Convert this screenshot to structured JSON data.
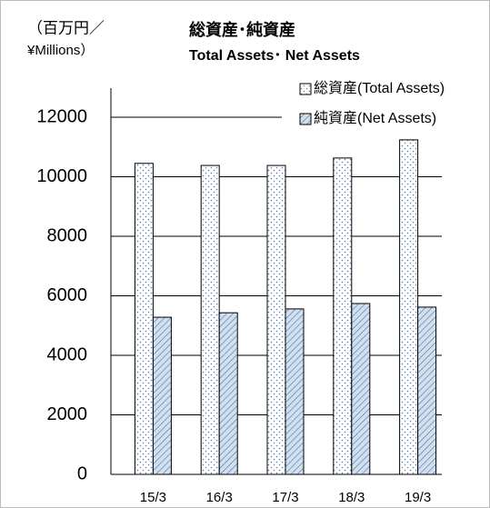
{
  "chart_data": {
    "type": "bar",
    "title": "総資産･純資産",
    "subtitle": "Total Assets･ Net Assets",
    "y_label": [
      "（百万円／",
      "¥Millions）"
    ],
    "categories": [
      "15/3",
      "16/3",
      "17/3",
      "18/3",
      "19/3"
    ],
    "series": [
      {
        "name": "総資産(Total Assets)",
        "color": "#ffffff",
        "pattern": "dots",
        "values": [
          10450,
          10380,
          10380,
          10630,
          11240
        ]
      },
      {
        "name": "純資産(Net Assets)",
        "color": "#cfe0f2",
        "pattern": "hatch",
        "values": [
          5280,
          5430,
          5560,
          5740,
          5620
        ]
      }
    ],
    "ylim": [
      0,
      12000
    ],
    "yticks": [
      0,
      2000,
      4000,
      6000,
      8000,
      10000,
      12000
    ],
    "grid": true,
    "legend": "top-right"
  }
}
